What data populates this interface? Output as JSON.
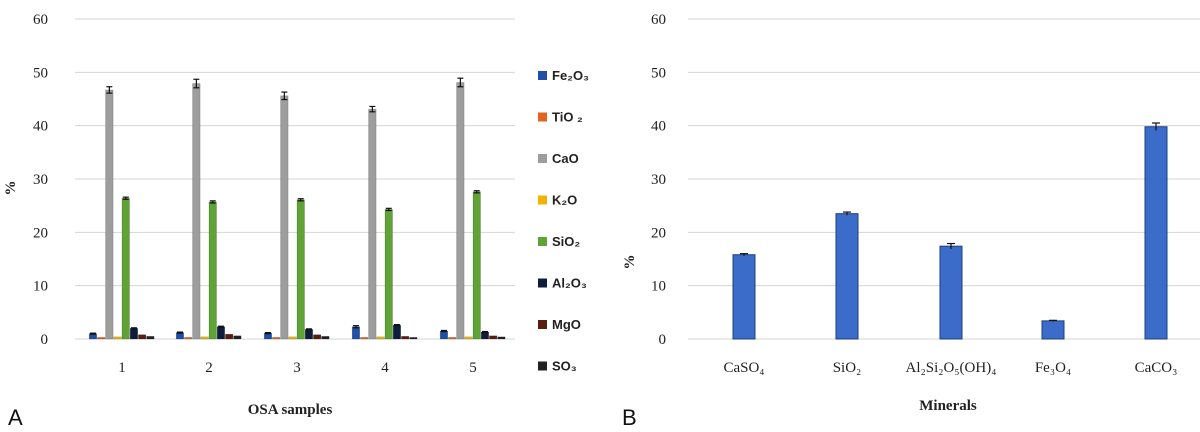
{
  "charts": [
    {
      "panel_label": "A",
      "xlabel": "OSA samples",
      "ylabel": "%",
      "yticks": [
        0,
        10,
        20,
        30,
        40,
        50,
        60
      ],
      "colors": [
        "#1f4fa8",
        "#e3641e",
        "#9d9d9d",
        "#f0b400",
        "#5fa236",
        "#0d1e3d",
        "#5a1d10",
        "#222222"
      ],
      "legend": [
        "Fe₂O₃",
        "TiO ₂",
        "CaO",
        "K₂O",
        "SiO₂",
        "Al₂O₃",
        "MgO",
        "SO₃"
      ]
    },
    {
      "panel_label": "B",
      "xlabel": "Minerals",
      "ylabel": "%",
      "yticks": [
        0,
        10,
        20,
        30,
        40,
        50,
        60
      ],
      "color": "#3b6cc9"
    }
  ],
  "chart_data": [
    {
      "type": "bar",
      "title": "",
      "xlabel": "OSA samples",
      "ylabel": "%",
      "ylim": [
        0,
        60
      ],
      "grid": true,
      "legend_position": "right",
      "categories": [
        "1",
        "2",
        "3",
        "4",
        "5"
      ],
      "series": [
        {
          "name": "Fe₂O₃",
          "values": [
            1.0,
            1.2,
            1.1,
            2.3,
            1.5
          ],
          "errors": [
            0.1,
            0.1,
            0.1,
            0.2,
            0.1
          ]
        },
        {
          "name": "TiO ₂",
          "values": [
            0.3,
            0.3,
            0.3,
            0.3,
            0.3
          ],
          "errors": [
            0,
            0,
            0,
            0,
            0
          ]
        },
        {
          "name": "CaO",
          "values": [
            46.7,
            47.9,
            45.6,
            43.1,
            48.1
          ],
          "errors": [
            0.6,
            0.8,
            0.7,
            0.5,
            0.8
          ]
        },
        {
          "name": "K₂O",
          "values": [
            0.4,
            0.4,
            0.4,
            0.4,
            0.4
          ],
          "errors": [
            0,
            0,
            0,
            0,
            0
          ]
        },
        {
          "name": "SiO₂",
          "values": [
            26.4,
            25.7,
            26.1,
            24.3,
            27.6
          ],
          "errors": [
            0.2,
            0.2,
            0.2,
            0.2,
            0.2
          ]
        },
        {
          "name": "Al₂O₃",
          "values": [
            2.0,
            2.3,
            1.8,
            2.6,
            1.3
          ],
          "errors": [
            0.1,
            0.1,
            0.1,
            0.1,
            0.1
          ]
        },
        {
          "name": "MgO",
          "values": [
            0.8,
            0.9,
            0.8,
            0.5,
            0.6
          ],
          "errors": [
            0,
            0,
            0,
            0,
            0
          ]
        },
        {
          "name": "SO₃",
          "values": [
            0.5,
            0.6,
            0.5,
            0.3,
            0.4
          ],
          "errors": [
            0,
            0,
            0,
            0,
            0
          ]
        }
      ]
    },
    {
      "type": "bar",
      "title": "",
      "xlabel": "Minerals",
      "ylabel": "%",
      "ylim": [
        0,
        60
      ],
      "grid": true,
      "categories": [
        "CaSO₄",
        "SiO₂",
        "Al₂Si₂O₅(OH)₄",
        "Fe₃O₄",
        "CaCO₃"
      ],
      "values": [
        15.8,
        23.5,
        17.4,
        3.4,
        39.8
      ],
      "errors": [
        0.2,
        0.3,
        0.5,
        0.1,
        0.7
      ]
    }
  ]
}
